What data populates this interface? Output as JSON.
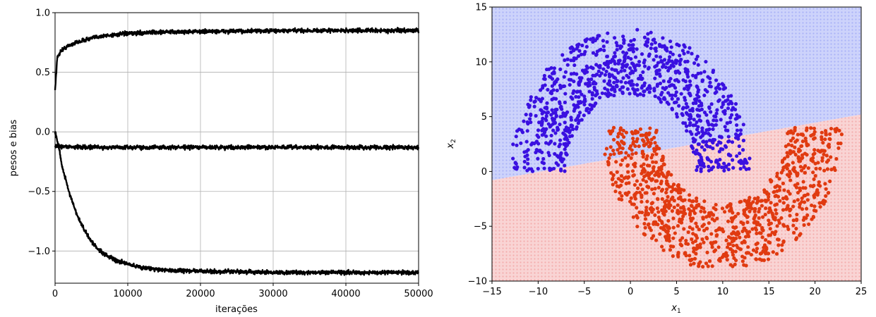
{
  "chart_data": [
    {
      "type": "line",
      "title": "",
      "xlabel": "iterações",
      "ylabel": "pesos e bias",
      "xlim": [
        0,
        50000
      ],
      "ylim": [
        -1.27,
        1.0
      ],
      "grid": true,
      "x_ticks": [
        0,
        10000,
        20000,
        30000,
        40000,
        50000
      ],
      "x_tick_labels": [
        "0",
        "10000",
        "20000",
        "30000",
        "40000",
        "50000"
      ],
      "y_ticks": [
        1.0,
        0.5,
        0.0,
        -0.5,
        -1.0
      ],
      "y_tick_labels": [
        "1.0",
        "0.5",
        "0.0",
        "−0.5",
        "−1.0"
      ],
      "line_color": "#000000",
      "series": [
        {
          "x": [
            0,
            300,
            800,
            1500,
            2500,
            4000,
            6000,
            9000,
            13000,
            18000,
            25000,
            35000,
            50000
          ],
          "values": [
            0.35,
            0.62,
            0.68,
            0.71,
            0.74,
            0.77,
            0.8,
            0.82,
            0.835,
            0.84,
            0.845,
            0.85,
            0.85
          ]
        },
        {
          "x": [
            0,
            5000,
            10000,
            20000,
            30000,
            40000,
            50000
          ],
          "values": [
            -0.12,
            -0.13,
            -0.13,
            -0.13,
            -0.13,
            -0.13,
            -0.13
          ]
        },
        {
          "x": [
            0,
            500,
            1000,
            2000,
            3000,
            4000,
            5000,
            6000,
            8000,
            10000,
            12000,
            15000,
            20000,
            30000,
            40000,
            50000
          ],
          "values": [
            0.0,
            -0.12,
            -0.3,
            -0.52,
            -0.7,
            -0.82,
            -0.92,
            -0.99,
            -1.07,
            -1.11,
            -1.14,
            -1.16,
            -1.17,
            -1.18,
            -1.18,
            -1.18
          ]
        }
      ]
    },
    {
      "type": "scatter",
      "title": "",
      "xlabel": "x1",
      "ylabel": "x2",
      "xlim": [
        -15,
        25
      ],
      "ylim": [
        -10,
        15
      ],
      "grid": false,
      "x_ticks": [
        -15,
        -10,
        -5,
        0,
        5,
        10,
        15,
        20,
        25
      ],
      "x_tick_labels": [
        "−15",
        "−10",
        "−5",
        "0",
        "5",
        "10",
        "15",
        "20",
        "25"
      ],
      "y_ticks": [
        15,
        10,
        5,
        0,
        -5,
        -10
      ],
      "y_tick_labels": [
        "15",
        "10",
        "5",
        "0",
        "−5",
        "−10"
      ],
      "decision_boundary": {
        "x": [
          -15,
          25
        ],
        "y": [
          -0.8,
          5.2
        ]
      },
      "region_colors": {
        "upper": "#cdd3fb",
        "lower": "#f9d4d4"
      },
      "point_colors": {
        "upper": "#3a10e0",
        "lower": "#e03a10"
      },
      "series": [
        {
          "class": "upper",
          "shape": "half-moon",
          "center": [
            0,
            0
          ],
          "radius_min": 7,
          "radius_max": 13,
          "count": 1000
        },
        {
          "class": "lower",
          "shape": "half-moon",
          "center": [
            10,
            4
          ],
          "radius_min": 7,
          "radius_max": 13,
          "count": 1000
        }
      ]
    }
  ]
}
